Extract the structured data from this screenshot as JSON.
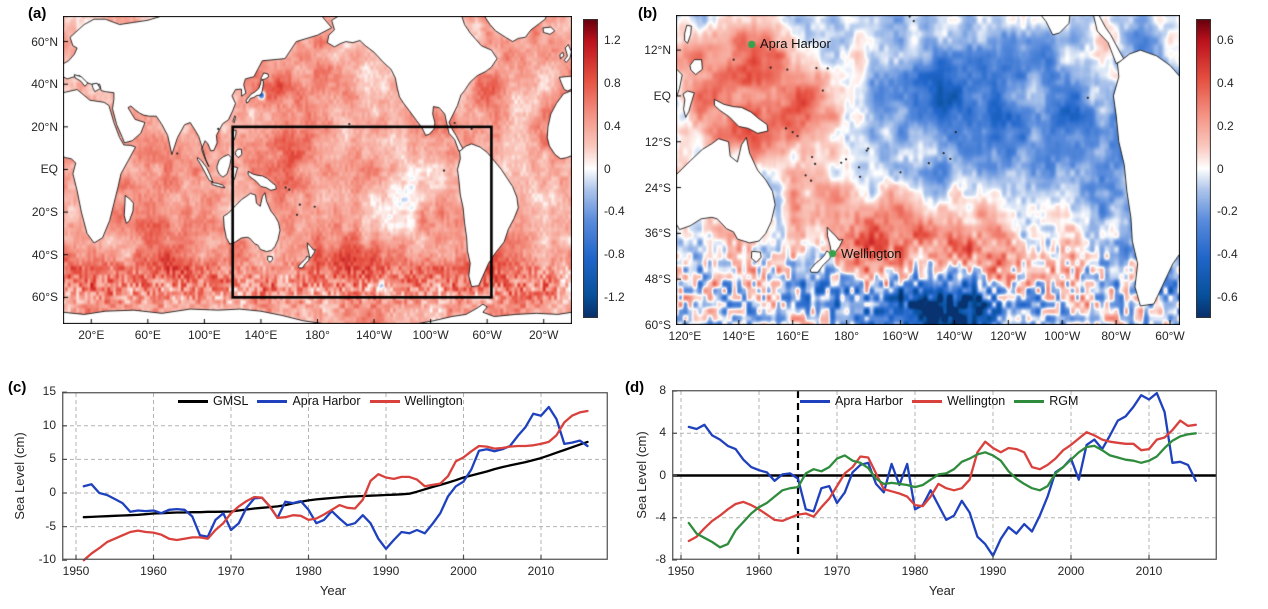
{
  "figure": {
    "panels": {
      "a": {
        "label": "(a)"
      },
      "b": {
        "label": "(b)"
      },
      "c": {
        "label": "(c)"
      },
      "d": {
        "label": "(d)"
      }
    }
  },
  "chart_data": [
    {
      "id": "a",
      "type": "heatmap",
      "subtype": "map",
      "description": "Global sea level trend map, mostly positive (red shades), with study-region box over the Pacific",
      "lon_range": [
        0,
        360
      ],
      "lat_range": [
        -72.5,
        72
      ],
      "x_ticks": [
        {
          "value": 20,
          "label": "20°E"
        },
        {
          "value": 60,
          "label": "60°E"
        },
        {
          "value": 100,
          "label": "100°E"
        },
        {
          "value": 140,
          "label": "140°E"
        },
        {
          "value": 180,
          "label": "180°"
        },
        {
          "value": 220,
          "label": "140°W"
        },
        {
          "value": 260,
          "label": "100°W"
        },
        {
          "value": 300,
          "label": "60°W"
        },
        {
          "value": 340,
          "label": "20°W"
        }
      ],
      "y_ticks": [
        {
          "value": 60,
          "label": "60°N"
        },
        {
          "value": 40,
          "label": "40°N"
        },
        {
          "value": 20,
          "label": "20°N"
        },
        {
          "value": 0,
          "label": "EQ"
        },
        {
          "value": -20,
          "label": "20°S"
        },
        {
          "value": -40,
          "label": "40°S"
        },
        {
          "value": -60,
          "label": "60°S"
        }
      ],
      "colorbar": {
        "range": [
          -1.4,
          1.4
        ],
        "ticks": [
          {
            "value": 1.2,
            "label": "1.2"
          },
          {
            "value": 0.8,
            "label": "0.8"
          },
          {
            "value": 0.4,
            "label": "0.4"
          },
          {
            "value": 0,
            "label": "0"
          },
          {
            "value": -0.4,
            "label": "-0.4"
          },
          {
            "value": -0.8,
            "label": "-0.8"
          },
          {
            "value": -1.2,
            "label": "-1.2"
          }
        ]
      },
      "palette": {
        "max": "#67000d",
        "mid": "#ffffff",
        "min": "#053061"
      },
      "study_box": {
        "lon": [
          120,
          303
        ],
        "lat": [
          -60,
          20
        ]
      }
    },
    {
      "id": "b",
      "type": "heatmap",
      "subtype": "map",
      "description": "Pacific sea level trend anomaly map: red in west, blue in east, deep blue in far south",
      "lon_range": [
        116.7,
        303.7
      ],
      "lat_range": [
        -60,
        21.2
      ],
      "x_ticks": [
        {
          "value": 120,
          "label": "120°E"
        },
        {
          "value": 140,
          "label": "140°E"
        },
        {
          "value": 160,
          "label": "160°E"
        },
        {
          "value": 180,
          "label": "180°"
        },
        {
          "value": 200,
          "label": "160°W"
        },
        {
          "value": 220,
          "label": "140°W"
        },
        {
          "value": 240,
          "label": "120°W"
        },
        {
          "value": 260,
          "label": "100°W"
        },
        {
          "value": 280,
          "label": "80°W"
        },
        {
          "value": 300,
          "label": "60°W"
        }
      ],
      "y_ticks": [
        {
          "value": 12,
          "label": "12°N"
        },
        {
          "value": 0,
          "label": "EQ"
        },
        {
          "value": -12,
          "label": "12°S"
        },
        {
          "value": -24,
          "label": "24°S"
        },
        {
          "value": -36,
          "label": "36°S"
        },
        {
          "value": -48,
          "label": "48°S"
        },
        {
          "value": -60,
          "label": "60°S"
        }
      ],
      "colorbar": {
        "range": [
          -0.7,
          0.7
        ],
        "ticks": [
          {
            "value": 0.6,
            "label": "0.6"
          },
          {
            "value": 0.4,
            "label": "0.4"
          },
          {
            "value": 0.2,
            "label": "0.2"
          },
          {
            "value": 0,
            "label": "0"
          },
          {
            "value": -0.2,
            "label": "-0.2"
          },
          {
            "value": -0.4,
            "label": "-0.4"
          },
          {
            "value": -0.6,
            "label": "-0.6"
          }
        ]
      },
      "palette": {
        "max": "#67000d",
        "mid": "#ffffff",
        "min": "#053061"
      },
      "marker_color": "#35a24b",
      "markers": [
        {
          "label": "Apra Harbor",
          "lon": 144.8,
          "lat": 13.5
        },
        {
          "label": "Wellington",
          "lon": 174.8,
          "lat": -41.3
        }
      ]
    },
    {
      "id": "c",
      "type": "line",
      "xlabel": "Year",
      "ylabel": "Sea Level (cm)",
      "xlim": [
        1948.2,
        2018.6
      ],
      "ylim": [
        -10,
        15
      ],
      "x_ticks": [
        1950,
        1960,
        1970,
        1980,
        1990,
        2000,
        2010
      ],
      "y_ticks": [
        15,
        10,
        5,
        0,
        -5,
        -10
      ],
      "grid_y": [
        10,
        5,
        0,
        -5
      ],
      "x": [
        1951,
        1952,
        1953,
        1954,
        1955,
        1956,
        1957,
        1958,
        1959,
        1960,
        1961,
        1962,
        1963,
        1964,
        1965,
        1966,
        1967,
        1968,
        1969,
        1970,
        1971,
        1972,
        1973,
        1974,
        1975,
        1976,
        1977,
        1978,
        1979,
        1980,
        1981,
        1982,
        1983,
        1984,
        1985,
        1986,
        1987,
        1988,
        1989,
        1990,
        1991,
        1992,
        1993,
        1994,
        1995,
        1996,
        1997,
        1998,
        1999,
        2000,
        2001,
        2002,
        2003,
        2004,
        2005,
        2006,
        2007,
        2008,
        2009,
        2010,
        2011,
        2012,
        2013,
        2014,
        2015,
        2016
      ],
      "series": [
        {
          "name": "GMSL",
          "color": "#000000",
          "values": [
            -3.6,
            -3.55,
            -3.5,
            -3.45,
            -3.4,
            -3.35,
            -3.3,
            -3.25,
            -3.15,
            -3.05,
            -3.0,
            -2.95,
            -2.9,
            -2.9,
            -2.85,
            -2.85,
            -2.8,
            -2.8,
            -2.78,
            -2.75,
            -2.6,
            -2.45,
            -2.3,
            -2.2,
            -2.1,
            -2.0,
            -1.8,
            -1.55,
            -1.3,
            -1.1,
            -0.95,
            -0.85,
            -0.75,
            -0.65,
            -0.55,
            -0.5,
            -0.45,
            -0.4,
            -0.35,
            -0.3,
            -0.25,
            -0.2,
            -0.1,
            0.2,
            0.55,
            0.9,
            1.2,
            1.55,
            1.9,
            2.3,
            2.6,
            2.9,
            3.2,
            3.55,
            3.85,
            4.1,
            4.35,
            4.6,
            4.9,
            5.2,
            5.6,
            6.0,
            6.4,
            6.8,
            7.2,
            7.6
          ]
        },
        {
          "name": "Apra Harbor",
          "color": "#1f41be",
          "values": [
            1.0,
            1.3,
            0.0,
            -0.3,
            -0.9,
            -1.5,
            -2.8,
            -2.6,
            -2.7,
            -2.6,
            -3.0,
            -2.5,
            -2.4,
            -2.5,
            -3.5,
            -6.3,
            -6.5,
            -4.0,
            -3.0,
            -5.5,
            -4.5,
            -2.2,
            -0.8,
            -0.7,
            -2.0,
            -3.7,
            -1.3,
            -1.5,
            -1.2,
            -2.5,
            -4.5,
            -4.0,
            -2.7,
            -3.8,
            -4.8,
            -4.5,
            -3.3,
            -4.5,
            -6.8,
            -8.3,
            -7.0,
            -5.8,
            -6.0,
            -5.5,
            -6.0,
            -4.6,
            -3.0,
            -0.5,
            1.0,
            1.7,
            3.5,
            6.3,
            6.5,
            6.2,
            6.5,
            7.0,
            8.5,
            9.8,
            11.8,
            11.5,
            12.8,
            11.0,
            7.3,
            7.5,
            7.8,
            7.0
          ]
        },
        {
          "name": "Wellington",
          "color": "#d9413d",
          "values": [
            -10.0,
            -9.0,
            -8.2,
            -7.3,
            -6.8,
            -6.3,
            -5.8,
            -5.6,
            -5.8,
            -5.9,
            -6.2,
            -6.8,
            -7.0,
            -6.8,
            -6.6,
            -6.6,
            -6.8,
            -5.5,
            -4.5,
            -3.0,
            -2.0,
            -1.2,
            -0.6,
            -0.7,
            -2.0,
            -3.7,
            -3.6,
            -3.3,
            -3.4,
            -4.0,
            -3.8,
            -3.2,
            -2.5,
            -1.8,
            -2.2,
            -2.3,
            -1.0,
            1.8,
            2.8,
            2.3,
            2.1,
            2.4,
            2.4,
            2.0,
            1.0,
            1.2,
            1.4,
            2.5,
            4.7,
            5.3,
            6.2,
            7.0,
            6.9,
            6.6,
            6.7,
            6.9,
            7.0,
            7.0,
            7.1,
            7.3,
            7.6,
            8.6,
            10.5,
            11.5,
            12.0,
            12.2
          ]
        }
      ]
    },
    {
      "id": "d",
      "type": "line",
      "xlabel": "Year",
      "ylabel": "Sea Level (cm)",
      "xlim": [
        1948.8,
        2018.7
      ],
      "ylim": [
        -8,
        8
      ],
      "x_ticks": [
        1950,
        1960,
        1970,
        1980,
        1990,
        2000,
        2010
      ],
      "y_ticks": [
        8,
        4,
        0,
        -4,
        -8
      ],
      "grid_y": [
        4,
        -4
      ],
      "zero_line": true,
      "event_line": {
        "year": 1965,
        "style": "dashed",
        "color": "#000000"
      },
      "x": [
        1951,
        1952,
        1953,
        1954,
        1955,
        1956,
        1957,
        1958,
        1959,
        1960,
        1961,
        1962,
        1963,
        1964,
        1965,
        1966,
        1967,
        1968,
        1969,
        1970,
        1971,
        1972,
        1973,
        1974,
        1975,
        1976,
        1977,
        1978,
        1979,
        1980,
        1981,
        1982,
        1983,
        1984,
        1985,
        1986,
        1987,
        1988,
        1989,
        1990,
        1991,
        1992,
        1993,
        1994,
        1995,
        1996,
        1997,
        1998,
        1999,
        2000,
        2001,
        2002,
        2003,
        2004,
        2005,
        2006,
        2007,
        2008,
        2009,
        2010,
        2011,
        2012,
        2013,
        2014,
        2015,
        2016
      ],
      "series": [
        {
          "name": "Apra Harbor",
          "color": "#1f41be",
          "values": [
            4.6,
            4.4,
            4.8,
            3.8,
            3.4,
            2.8,
            2.5,
            1.5,
            0.8,
            0.5,
            0.3,
            -0.5,
            0.1,
            0.2,
            -0.3,
            -3.2,
            -3.4,
            -1.2,
            -1.0,
            -2.6,
            -1.6,
            0.3,
            1.0,
            1.2,
            -0.8,
            -1.6,
            1.1,
            -0.9,
            1.1,
            -3.2,
            -2.8,
            -1.4,
            -2.8,
            -4.2,
            -3.8,
            -2.4,
            -3.5,
            -5.8,
            -6.5,
            -7.6,
            -6.0,
            -4.9,
            -5.5,
            -4.6,
            -5.3,
            -3.8,
            -2.0,
            0.3,
            0.8,
            1.6,
            -0.4,
            2.9,
            3.4,
            2.5,
            3.8,
            5.2,
            5.6,
            6.5,
            7.6,
            7.2,
            7.8,
            6.0,
            1.2,
            1.3,
            1.0,
            -0.5
          ]
        },
        {
          "name": "Wellington",
          "color": "#d9413d",
          "values": [
            -6.2,
            -5.8,
            -5.0,
            -4.3,
            -3.8,
            -3.2,
            -2.7,
            -2.5,
            -2.8,
            -3.2,
            -3.7,
            -4.2,
            -4.3,
            -4.0,
            -3.7,
            -3.6,
            -3.9,
            -3.0,
            -2.2,
            -1.0,
            0.2,
            0.8,
            1.8,
            1.7,
            0.2,
            -1.3,
            -1.5,
            -1.7,
            -2.0,
            -2.8,
            -2.9,
            -2.0,
            -0.8,
            -1.2,
            -1.4,
            -1.2,
            -0.4,
            2.2,
            3.2,
            2.6,
            2.2,
            2.6,
            2.5,
            2.2,
            0.8,
            0.6,
            1.0,
            1.6,
            2.4,
            2.9,
            3.5,
            4.1,
            3.8,
            3.4,
            3.2,
            3.1,
            3.0,
            3.0,
            2.4,
            2.5,
            3.4,
            3.6,
            4.3,
            5.2,
            4.7,
            4.8
          ]
        },
        {
          "name": "RGM",
          "color": "#2f8c3c",
          "values": [
            -4.5,
            -5.5,
            -5.9,
            -6.3,
            -6.8,
            -6.5,
            -5.2,
            -4.4,
            -3.6,
            -3.0,
            -2.6,
            -2.0,
            -1.4,
            -1.2,
            -1.1,
            0.2,
            0.6,
            0.4,
            0.8,
            1.6,
            1.9,
            1.4,
            1.2,
            0.7,
            -0.3,
            -0.8,
            -0.7,
            -0.8,
            -0.9,
            -1.1,
            -0.9,
            -0.4,
            0.1,
            0.2,
            0.6,
            1.3,
            1.6,
            2.0,
            2.2,
            1.9,
            1.4,
            0.4,
            -0.3,
            -0.8,
            -1.2,
            -1.4,
            -1.0,
            0.2,
            0.8,
            1.5,
            2.2,
            2.7,
            2.8,
            2.4,
            1.9,
            1.7,
            1.5,
            1.4,
            1.2,
            1.4,
            1.8,
            2.6,
            3.3,
            3.7,
            3.9,
            4.0
          ]
        }
      ]
    }
  ]
}
